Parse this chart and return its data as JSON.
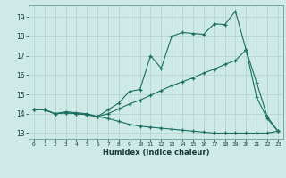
{
  "title": "",
  "xlabel": "Humidex (Indice chaleur)",
  "xlim": [
    -0.5,
    23.5
  ],
  "ylim": [
    12.7,
    19.6
  ],
  "yticks": [
    13,
    14,
    15,
    16,
    17,
    18,
    19
  ],
  "xticks": [
    0,
    1,
    2,
    3,
    4,
    5,
    6,
    7,
    8,
    9,
    10,
    11,
    12,
    13,
    14,
    15,
    16,
    17,
    18,
    19,
    20,
    21,
    22,
    23
  ],
  "bg_color": "#ceeae6",
  "grid_color": "#b8d4d0",
  "line_color": "#1a6e62",
  "lines": [
    {
      "x": [
        0,
        1,
        2,
        3,
        4,
        5,
        6,
        7,
        8,
        9,
        10,
        11,
        12,
        13,
        14,
        15,
        16,
        17,
        18,
        19,
        20,
        21,
        22,
        23
      ],
      "y": [
        14.2,
        14.2,
        14.0,
        14.1,
        14.05,
        14.0,
        13.85,
        14.2,
        14.55,
        15.15,
        15.25,
        17.0,
        16.35,
        18.0,
        18.2,
        18.15,
        18.1,
        18.65,
        18.6,
        19.3,
        17.3,
        15.6,
        13.85,
        13.1
      ]
    },
    {
      "x": [
        0,
        1,
        2,
        3,
        4,
        5,
        6,
        7,
        8,
        9,
        10,
        11,
        12,
        13,
        14,
        15,
        16,
        17,
        18,
        19,
        20,
        21,
        22,
        23
      ],
      "y": [
        14.2,
        14.2,
        14.0,
        14.05,
        14.0,
        13.95,
        13.85,
        14.0,
        14.25,
        14.5,
        14.7,
        14.95,
        15.2,
        15.45,
        15.65,
        15.85,
        16.1,
        16.3,
        16.55,
        16.75,
        17.3,
        14.85,
        13.75,
        13.1
      ]
    },
    {
      "x": [
        0,
        1,
        2,
        3,
        4,
        5,
        6,
        7,
        8,
        9,
        10,
        11,
        12,
        13,
        14,
        15,
        16,
        17,
        18,
        19,
        20,
        21,
        22,
        23
      ],
      "y": [
        14.2,
        14.2,
        14.0,
        14.05,
        14.0,
        13.95,
        13.85,
        13.75,
        13.6,
        13.45,
        13.35,
        13.3,
        13.25,
        13.2,
        13.15,
        13.1,
        13.05,
        13.0,
        13.0,
        13.0,
        13.0,
        13.0,
        13.0,
        13.1
      ]
    }
  ]
}
